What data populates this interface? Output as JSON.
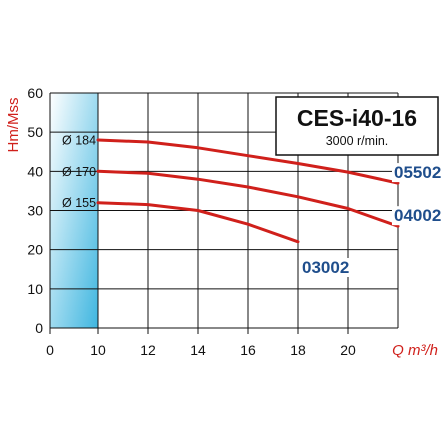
{
  "chart_data": {
    "type": "line",
    "title": "CES-i40-16",
    "subtitle": "3000 r/min.",
    "ylabel": "Hm/Mss",
    "xlabel": "Q m³/h",
    "xlim": [
      0,
      22
    ],
    "ylim": [
      0,
      60
    ],
    "xticks": [
      "0",
      "10",
      "12",
      "14",
      "16",
      "18",
      "20"
    ],
    "yticks": [
      "0",
      "10",
      "20",
      "30",
      "40",
      "50",
      "60"
    ],
    "grid": true,
    "series_color": "#d0201b",
    "model_color": "#1f4e8c",
    "series": [
      {
        "diameter": "Ø 184",
        "model": "05502",
        "x": [
          10,
          12,
          14,
          16,
          18,
          20,
          22
        ],
        "y": [
          48,
          47.5,
          46,
          44,
          42,
          39.8,
          37
        ]
      },
      {
        "diameter": "Ø 170",
        "model": "04002",
        "x": [
          10,
          12,
          14,
          16,
          18,
          20,
          22
        ],
        "y": [
          40,
          39.5,
          38,
          36,
          33.5,
          30.5,
          26
        ]
      },
      {
        "diameter": "Ø 155",
        "model": "03002",
        "x": [
          10,
          12,
          14,
          16,
          18
        ],
        "y": [
          32,
          31.5,
          30,
          26.5,
          22
        ]
      }
    ]
  }
}
